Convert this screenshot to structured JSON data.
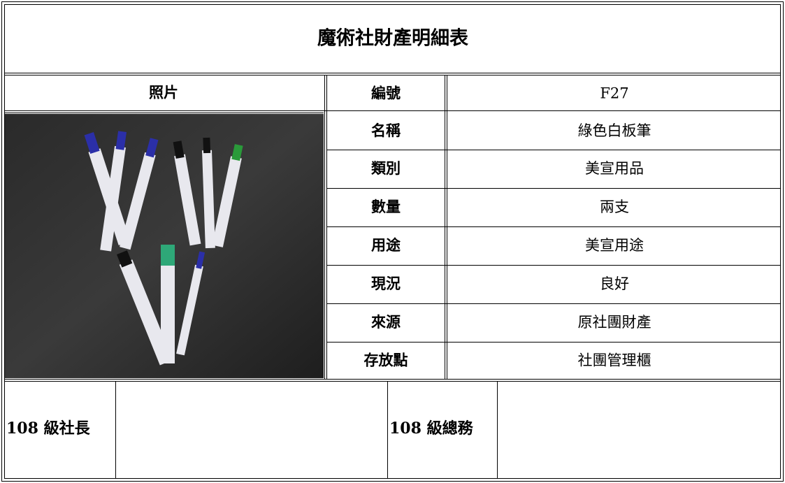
{
  "title": "魔術社財產明細表",
  "table": {
    "photo_header": "照片",
    "rows": [
      [
        "編號",
        "F27"
      ],
      [
        "名稱",
        "綠色白板筆"
      ],
      [
        "類別",
        "美宣用品"
      ],
      [
        "數量",
        "兩支"
      ],
      [
        "用途",
        "美宣用途"
      ],
      [
        "現況",
        "良好"
      ],
      [
        "來源",
        "原社團財產"
      ],
      [
        "存放點",
        "社團管理櫃"
      ]
    ]
  },
  "signatures": [
    "108 級社長",
    "108 級總務"
  ]
}
